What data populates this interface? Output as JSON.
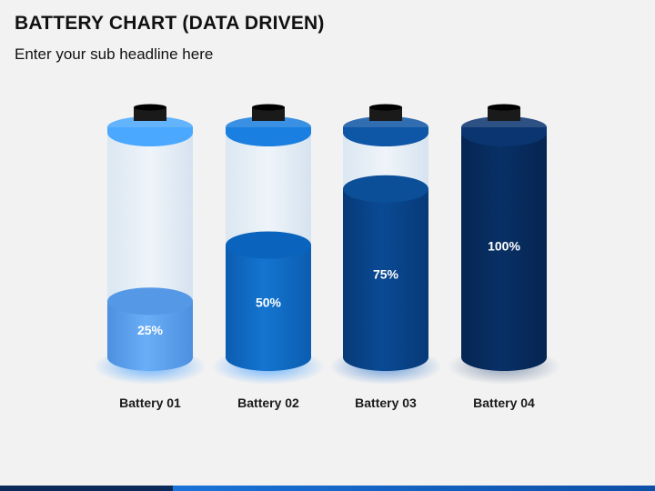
{
  "title": "BATTERY CHART (DATA DRIVEN)",
  "subtitle": "Enter your sub headline here",
  "colors": {
    "background": "#f2f2f2",
    "footer_dark": "#0b2a5c",
    "footer_light": "#1a73d9"
  },
  "chart_data": {
    "type": "bar",
    "style": "battery",
    "categories": [
      "Battery 01",
      "Battery 02",
      "Battery 03",
      "Battery 04"
    ],
    "values": [
      25,
      50,
      75,
      100
    ],
    "value_labels": [
      "25%",
      "50%",
      "75%",
      "100%"
    ],
    "ylim": [
      0,
      100
    ],
    "grid": false,
    "colors": [
      {
        "fill": "#6aaef7",
        "fill_dark": "#4c90e0",
        "top": "#5599e6",
        "rim": "#4aa8ff",
        "glow": "#3d9bff"
      },
      {
        "fill": "#1475d0",
        "fill_dark": "#0b5db0",
        "top": "#0a63bd",
        "rim": "#1a7fe0",
        "glow": "#3d9bff"
      },
      {
        "fill": "#0a4a94",
        "fill_dark": "#073a78",
        "top": "#0c4f99",
        "rim": "#0e56a6",
        "glow": "#3d7fd0"
      },
      {
        "fill": "#083066",
        "fill_dark": "#062552",
        "top": "#3b5f93",
        "rim": "#0a3570",
        "glow": "#6a7fa0"
      }
    ]
  }
}
